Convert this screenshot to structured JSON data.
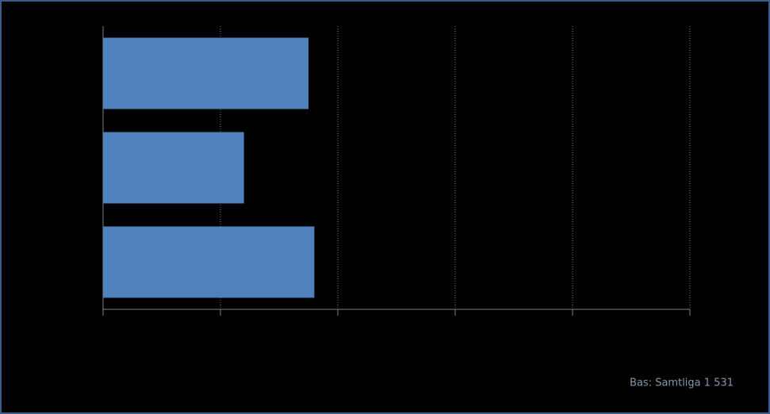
{
  "chart_data": {
    "type": "bar",
    "orientation": "horizontal",
    "categories": [
      null,
      null,
      null
    ],
    "values": [
      35,
      24,
      36
    ],
    "color": "#4f81bd",
    "xlim": [
      0,
      100
    ],
    "xticks": [
      0,
      20,
      40,
      60,
      80,
      100
    ],
    "grid": true,
    "note": "Bas: Samtliga 1 531"
  }
}
